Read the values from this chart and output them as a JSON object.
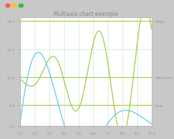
{
  "title": "Multiaxis chart example",
  "x_min": 1.0,
  "x_max": 10.0,
  "y_min": 3.5,
  "y_max": 18.5,
  "x_ticks": [
    1.0,
    2.0,
    3.0,
    4.0,
    5.0,
    6.0,
    7.0,
    8.0,
    9.0,
    10.0
  ],
  "y_ticks": [
    3.5,
    6.4,
    10.2,
    14.1,
    18.0
  ],
  "blue_color": "#5bc8f5",
  "green_color": "#a0c840",
  "plot_bg": "#ffffff",
  "grid_color": "#c8e8c8",
  "hline_high": 18.0,
  "hline_medium": 10.2,
  "hline_low": 6.4,
  "label_high": "High",
  "label_medium": "Medium",
  "label_low": "Low",
  "window_bg": "#c8c8c8",
  "title_color": "#888888",
  "tick_color": "#999999",
  "title_fontsize": 5.5,
  "tick_fontsize": 4.0,
  "label_fontsize": 4.5
}
